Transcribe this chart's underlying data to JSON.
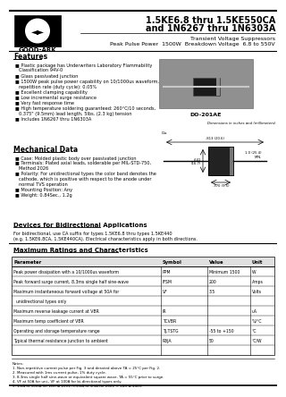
{
  "title_line1": "1.5KE6.8 thru 1.5KE550CA",
  "title_line2": "and 1N6267 thru 1N6303A",
  "subtitle1": "Transient Voltage Suppressors",
  "subtitle2": "Peak Pulse Power  1500W  Breakdown Voltage  6.8 to 550V",
  "company": "GOOD-ARK",
  "features_title": "Features",
  "features": [
    "Plastic package has Underwriters Laboratory Flammability",
    "  Classification 94V-0",
    "Glass passivated junction",
    "1500W peak pulse power capability on 10/1000us waveform,",
    "  repetition rate (duty cycle): 0.05%",
    "Excellent clamping capability",
    "Low incremental surge resistance",
    "Very fast response time",
    "High temperature soldering guaranteed: 260°C/10 seconds,",
    "  0.375\" (9.5mm) lead length, 5lbs. (2.3 kg) tension",
    "Includes 1N6267 thru 1N6303A"
  ],
  "package": "DO-201AE",
  "mech_title": "Mechanical Data",
  "mech": [
    "Case: Molded plastic body over passivated junction",
    "Terminals: Plated axial leads, solderable per MIL-STD-750,",
    "  Method 2026",
    "Polarity: For unidirectional types the color band denotes the",
    "  cathode, which is positive with respect to the anode under",
    "  normal TVS operation",
    "Mounting Position: Any",
    "Weight: 0.84Sec., 1.2g"
  ],
  "bidir_title": "Devices for Bidirectional Applications",
  "bidir_text": "For bidirectional, use CA suffix for types 1.5KE6.8 thru types 1.5KE440",
  "bidir_text2": "(e.g. 1.5KE6.8CA, 1.5KE440CA). Electrical characteristics apply in both directions.",
  "max_ratings_title": "Maximum Ratings and Characteristics",
  "table_headers": [
    "Parameter",
    "Symbol",
    "Value",
    "Unit"
  ],
  "table_data": [
    [
      "Peak power dissipation with a 10/1000us waveform",
      "PPM",
      "Minimum 1500",
      "W"
    ],
    [
      "Peak forward surge current, 8.3ms single half sine-wave",
      "IFSM",
      "200",
      "Amps"
    ],
    [
      "Maximum instantaneous forward voltage at 50A for",
      "VF",
      "3.5",
      "Volts"
    ],
    [
      "  unidirectional types only",
      "",
      "",
      ""
    ],
    [
      "Maximum reverse leakage current at VBR",
      "IR",
      "",
      "uA"
    ],
    [
      "Maximum temp coefficient of VBR",
      "TCVBR",
      "",
      "%/°C"
    ],
    [
      "Operating and storage temperature range",
      "TJ,TSTG",
      "-55 to +150",
      "°C"
    ],
    [
      "Typical thermal resistance junction to ambient",
      "RθJA",
      "50",
      "°C/W"
    ]
  ],
  "notes": [
    "Notes:",
    "1. Non-repetitive current pulse per Fig. 3 and derated above TA = 25°C per Fig. 2.",
    "2. Measured with 1ms current pulse, 1% duty cycle.",
    "3. 8.3ms single half sine-wave or equivalent square wave, TA = 55°C prior to surge.",
    "4. VF at 50A for uni., VF at 100A for bi-directional types only.",
    "5. 1mA to 10mA for VBR ≤ 200V, 0.5mA to 5mA for 200V < VBR ≤ 440V."
  ],
  "dims_note": "Dimensions in inches and (millimeters)",
  "bg_color": "#ffffff"
}
